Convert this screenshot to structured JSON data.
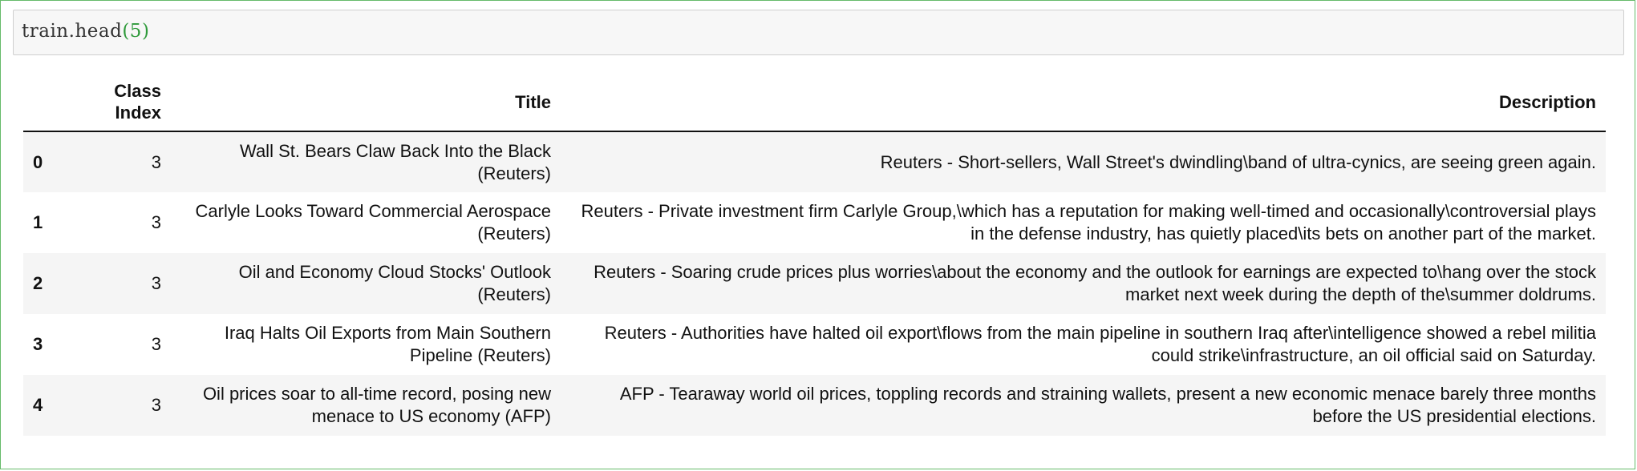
{
  "input": {
    "code_object": "train.",
    "code_method": "head",
    "code_open": "(",
    "code_arg": "5",
    "code_close": ")"
  },
  "table": {
    "columns": [
      "",
      "Class Index",
      "Title",
      "Description"
    ],
    "column_class_index_line1": "Class",
    "column_class_index_line2": "Index",
    "rows": [
      {
        "index": "0",
        "class_index": "3",
        "title": "Wall St. Bears Claw Back Into the Black (Reuters)",
        "description": "Reuters - Short-sellers, Wall Street's dwindling\\band of ultra-cynics, are seeing green again."
      },
      {
        "index": "1",
        "class_index": "3",
        "title": "Carlyle Looks Toward Commercial Aerospace (Reuters)",
        "description": "Reuters - Private investment firm Carlyle Group,\\which has a reputation for making well-timed and occasionally\\controversial plays in the defense industry, has quietly placed\\its bets on another part of the market."
      },
      {
        "index": "2",
        "class_index": "3",
        "title": "Oil and Economy Cloud Stocks' Outlook (Reuters)",
        "description": "Reuters - Soaring crude prices plus worries\\about the economy and the outlook for earnings are expected to\\hang over the stock market next week during the depth of the\\summer doldrums."
      },
      {
        "index": "3",
        "class_index": "3",
        "title": "Iraq Halts Oil Exports from Main Southern Pipeline (Reuters)",
        "description": "Reuters - Authorities have halted oil export\\flows from the main pipeline in southern Iraq after\\intelligence showed a rebel militia could strike\\infrastructure, an oil official said on Saturday."
      },
      {
        "index": "4",
        "class_index": "3",
        "title": "Oil prices soar to all-time record, posing new menace to US economy (AFP)",
        "description": "AFP - Tearaway world oil prices, toppling records and straining wallets, present a new economic menace barely three months before the US presidential elections."
      }
    ]
  },
  "colors": {
    "cell_border": "#66bb6a",
    "input_bg": "#f7f7f7",
    "code_number": "#2e9a3a",
    "row_stripe": "#f5f5f5"
  }
}
